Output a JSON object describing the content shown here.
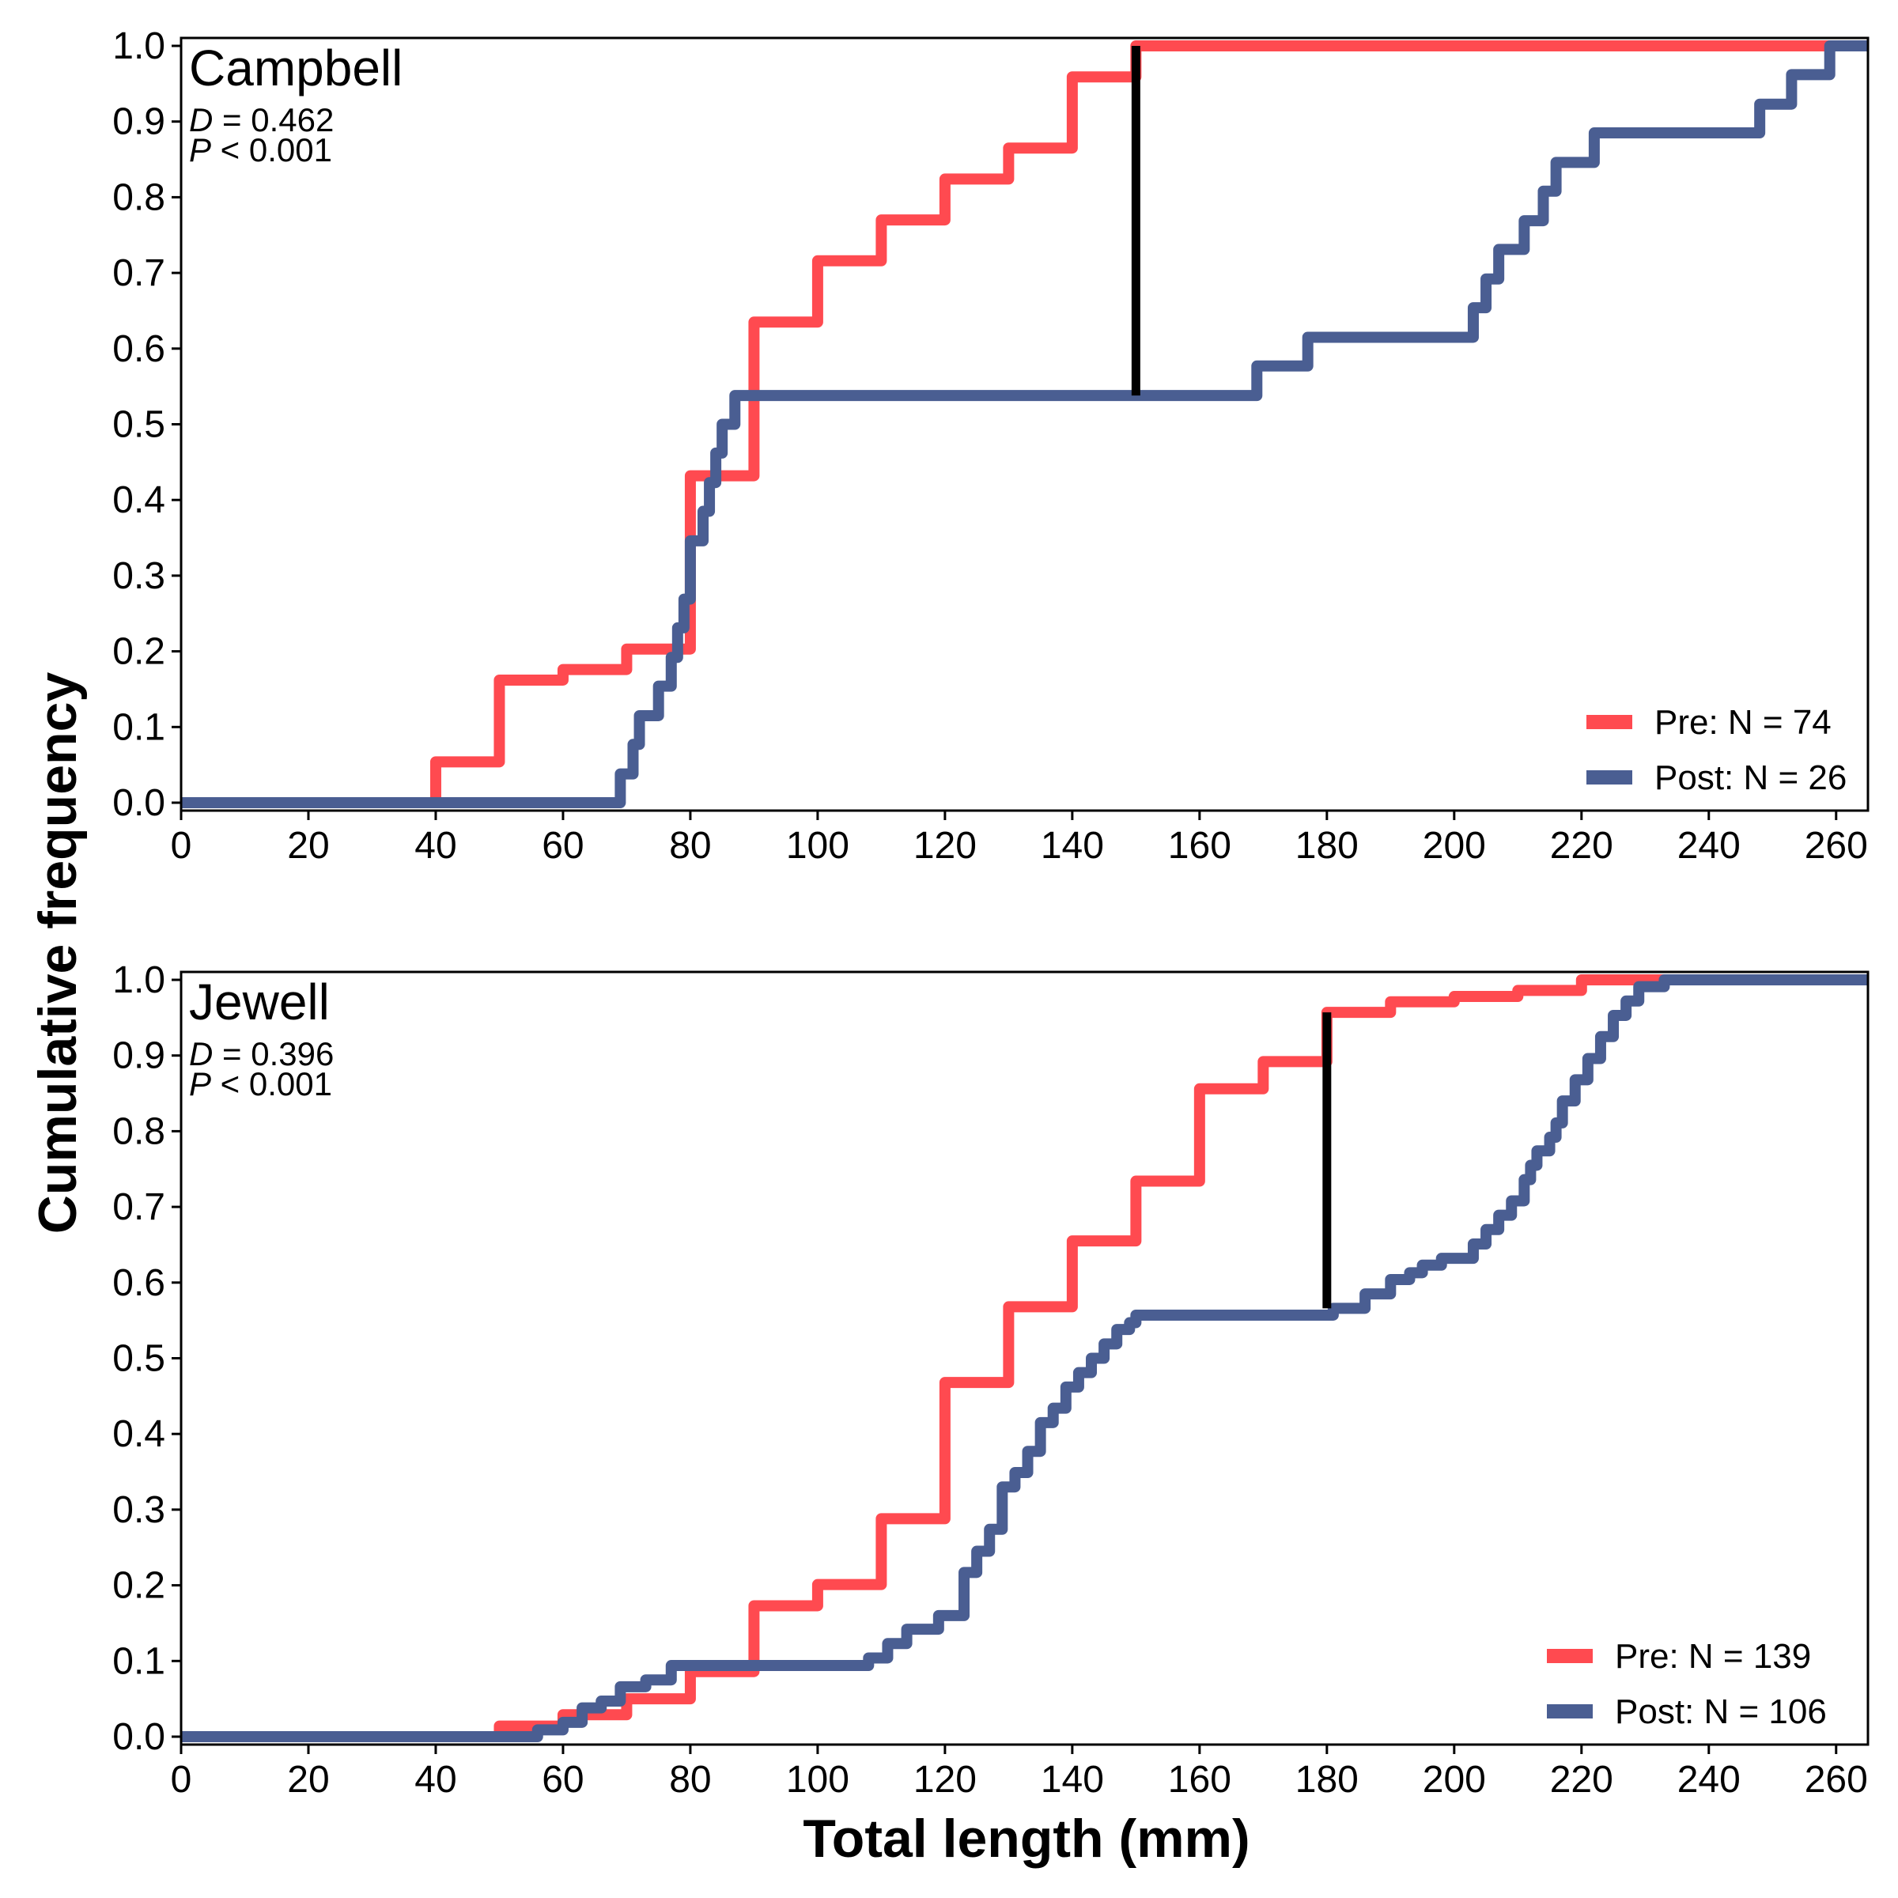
{
  "figure": {
    "xlabel": "Total length (mm)",
    "ylabel": "Cumulative frequency"
  },
  "colors": {
    "pre": "#ff4a50",
    "post": "#4a5e92",
    "d_line": "#000000"
  },
  "chart_data": [
    {
      "type": "line",
      "step": true,
      "title": "Campbell",
      "stat_d_label": "D",
      "stat_d_value": " = 0.462",
      "stat_p_label": "P",
      "stat_p_value": " < 0.001",
      "xlim": [
        0,
        265
      ],
      "ylim": [
        0,
        1
      ],
      "xticks": [
        0,
        20,
        40,
        60,
        80,
        100,
        120,
        140,
        160,
        180,
        200,
        220,
        240,
        260
      ],
      "yticks": [
        0.0,
        0.1,
        0.2,
        0.3,
        0.4,
        0.5,
        0.6,
        0.7,
        0.8,
        0.9,
        1.0
      ],
      "ytick_labels": [
        "0.0",
        "0.1",
        "0.2",
        "0.3",
        "0.4",
        "0.5",
        "0.6",
        "0.7",
        "0.8",
        "0.9",
        "1.0"
      ],
      "legend_position": "bottom-right",
      "series": [
        {
          "name": "Pre: N = 74",
          "key": "pre",
          "x": [
            0,
            40,
            50,
            60,
            70,
            79,
            80,
            90,
            100,
            110,
            120,
            130,
            140,
            150,
            265
          ],
          "y": [
            0,
            0.054,
            0.162,
            0.176,
            0.203,
            0.203,
            0.432,
            0.635,
            0.716,
            0.77,
            0.824,
            0.865,
            0.959,
            1.0,
            1.0
          ]
        },
        {
          "name": "Post: N = 26",
          "key": "post",
          "x": [
            0,
            69,
            71,
            72,
            73,
            75,
            77,
            78,
            79,
            80,
            82,
            83,
            84,
            85,
            86,
            87,
            169,
            177,
            203,
            205,
            207,
            211,
            214,
            216,
            222,
            248,
            253,
            259,
            265
          ],
          "y": [
            0,
            0.038,
            0.077,
            0.115,
            0.115,
            0.154,
            0.192,
            0.231,
            0.269,
            0.346,
            0.385,
            0.423,
            0.462,
            0.5,
            0.5,
            0.538,
            0.577,
            0.615,
            0.654,
            0.692,
            0.731,
            0.769,
            0.808,
            0.846,
            0.885,
            0.923,
            0.962,
            1.0,
            1.0
          ]
        }
      ],
      "d_statistic_line": {
        "x": 150,
        "y_from": 0.538,
        "y_to": 1.0
      }
    },
    {
      "type": "line",
      "step": true,
      "title": "Jewell",
      "stat_d_label": "D",
      "stat_d_value": " = 0.396",
      "stat_p_label": "P",
      "stat_p_value": " < 0.001",
      "xlim": [
        0,
        265
      ],
      "ylim": [
        0,
        1
      ],
      "xticks": [
        0,
        20,
        40,
        60,
        80,
        100,
        120,
        140,
        160,
        180,
        200,
        220,
        240,
        260
      ],
      "yticks": [
        0.0,
        0.1,
        0.2,
        0.3,
        0.4,
        0.5,
        0.6,
        0.7,
        0.8,
        0.9,
        1.0
      ],
      "ytick_labels": [
        "0.0",
        "0.1",
        "0.2",
        "0.3",
        "0.4",
        "0.5",
        "0.6",
        "0.7",
        "0.8",
        "0.9",
        "1.0"
      ],
      "legend_position": "bottom-right",
      "series": [
        {
          "name": "Pre: N = 139",
          "key": "pre",
          "x": [
            0,
            50,
            60,
            70,
            80,
            90,
            100,
            110,
            120,
            130,
            140,
            150,
            160,
            170,
            180,
            190,
            200,
            210,
            220,
            230,
            265
          ],
          "y": [
            0,
            0.014,
            0.029,
            0.05,
            0.086,
            0.173,
            0.201,
            0.288,
            0.468,
            0.568,
            0.655,
            0.734,
            0.856,
            0.892,
            0.957,
            0.971,
            0.978,
            0.986,
            1.0,
            1.0,
            1.0
          ]
        },
        {
          "name": "Post: N = 106",
          "key": "post",
          "x": [
            0,
            56,
            60,
            63,
            66,
            69,
            73,
            77,
            108,
            111,
            114,
            119,
            123,
            125,
            127,
            129,
            131,
            133,
            135,
            137,
            139,
            141,
            143,
            145,
            147,
            149,
            150,
            181,
            186,
            190,
            193,
            195,
            198,
            203,
            205,
            207,
            209,
            211,
            212,
            213,
            215,
            216,
            217,
            219,
            221,
            223,
            225,
            227,
            229,
            233,
            235,
            265
          ],
          "y": [
            0,
            0.009,
            0.019,
            0.038,
            0.047,
            0.066,
            0.075,
            0.094,
            0.104,
            0.123,
            0.142,
            0.16,
            0.217,
            0.245,
            0.274,
            0.33,
            0.349,
            0.377,
            0.415,
            0.434,
            0.462,
            0.481,
            0.5,
            0.519,
            0.538,
            0.547,
            0.557,
            0.566,
            0.585,
            0.604,
            0.613,
            0.623,
            0.632,
            0.651,
            0.67,
            0.689,
            0.708,
            0.736,
            0.755,
            0.774,
            0.792,
            0.811,
            0.84,
            0.868,
            0.896,
            0.925,
            0.953,
            0.972,
            0.991,
            1.0,
            1.0,
            1.0
          ]
        }
      ],
      "d_statistic_line": {
        "x": 180,
        "y_from": 0.566,
        "y_to": 0.957
      }
    }
  ]
}
